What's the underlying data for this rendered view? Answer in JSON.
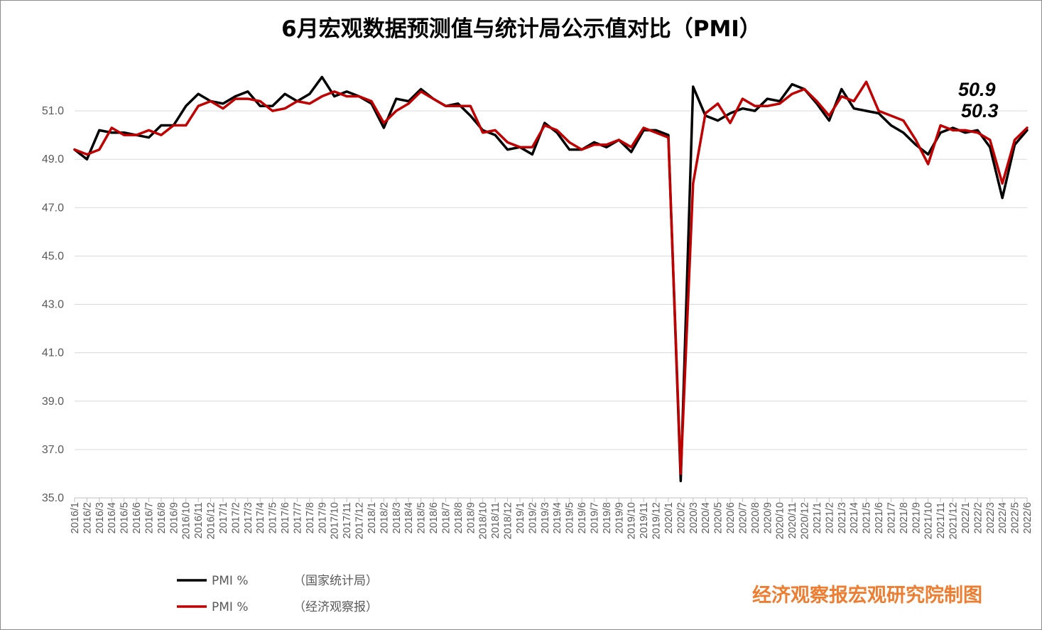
{
  "chart_data": {
    "type": "line",
    "title": "6月宏观数据预测值与统计局公示值对比（PMI）",
    "ylim": [
      35.0,
      53.0
    ],
    "yticks": [
      "35.0",
      "37.0",
      "39.0",
      "41.0",
      "43.0",
      "45.0",
      "47.0",
      "49.0",
      "51.0"
    ],
    "grid": true,
    "legend_position": "bottom-left",
    "x": [
      "2016/1",
      "2016/2",
      "2016/3",
      "2016/4",
      "2016/5",
      "2016/6",
      "2016/7",
      "2016/8",
      "2016/9",
      "2016/10",
      "2016/11",
      "2016/12",
      "2017/1",
      "2017/2",
      "2017/3",
      "2017/4",
      "2017/5",
      "2017/6",
      "2017/7",
      "2017/8",
      "2017/9",
      "2017/10",
      "2017/11",
      "2017/12",
      "2018/1",
      "2018/2",
      "2018/3",
      "2018/4",
      "2018/5",
      "2018/6",
      "2018/7",
      "2018/8",
      "2018/9",
      "2018/10",
      "2018/11",
      "2018/12",
      "2019/1",
      "2019/2",
      "2019/3",
      "2019/4",
      "2019/5",
      "2019/6",
      "2019/7",
      "2019/8",
      "2019/9",
      "2019/10",
      "2019/11",
      "2019/12",
      "2020/1",
      "2020/2",
      "2020/3",
      "2020/4",
      "2020/5",
      "2020/6",
      "2020/7",
      "2020/8",
      "2020/9",
      "2020/10",
      "2020/11",
      "2020/12",
      "2021/1",
      "2021/2",
      "2021/3",
      "2021/4",
      "2021/5",
      "2021/6",
      "2021/7",
      "2021/8",
      "2021/9",
      "2021/10",
      "2021/11",
      "2021/12",
      "2022/1",
      "2022/2",
      "2022/3",
      "2022/4",
      "2022/5",
      "2022/6"
    ],
    "series": [
      {
        "name": "PMI %",
        "source": "（国家统计局）",
        "color": "#000000",
        "values": [
          49.4,
          49.0,
          50.2,
          50.1,
          50.1,
          50.0,
          49.9,
          50.4,
          50.4,
          51.2,
          51.7,
          51.4,
          51.3,
          51.6,
          51.8,
          51.2,
          51.2,
          51.7,
          51.4,
          51.7,
          52.4,
          51.6,
          51.8,
          51.6,
          51.3,
          50.3,
          51.5,
          51.4,
          51.9,
          51.5,
          51.2,
          51.3,
          50.8,
          50.2,
          50.0,
          49.4,
          49.5,
          49.2,
          50.5,
          50.1,
          49.4,
          49.4,
          49.7,
          49.5,
          49.8,
          49.3,
          50.2,
          50.2,
          50.0,
          35.7,
          52.0,
          50.8,
          50.6,
          50.9,
          51.1,
          51.0,
          51.5,
          51.4,
          52.1,
          51.9,
          51.3,
          50.6,
          51.9,
          51.1,
          51.0,
          50.9,
          50.4,
          50.1,
          49.6,
          49.2,
          50.1,
          50.3,
          50.1,
          50.2,
          49.5,
          47.4,
          49.6,
          50.2
        ]
      },
      {
        "name": "PMI %",
        "source": "（经济观察报）",
        "color": "#C00000",
        "values": [
          49.4,
          49.2,
          49.4,
          50.3,
          50.0,
          50.0,
          50.2,
          50.0,
          50.4,
          50.4,
          51.2,
          51.4,
          51.1,
          51.5,
          51.5,
          51.4,
          51.0,
          51.1,
          51.4,
          51.3,
          51.6,
          51.8,
          51.6,
          51.6,
          51.4,
          50.5,
          51.0,
          51.3,
          51.8,
          51.5,
          51.2,
          51.2,
          51.2,
          50.1,
          50.2,
          49.7,
          49.5,
          49.5,
          50.4,
          50.2,
          49.7,
          49.4,
          49.6,
          49.6,
          49.8,
          49.5,
          50.3,
          50.1,
          49.9,
          36.0,
          48.0,
          50.9,
          51.3,
          50.5,
          51.5,
          51.2,
          51.2,
          51.3,
          51.7,
          51.9,
          51.4,
          50.8,
          51.6,
          51.4,
          52.2,
          51.0,
          50.8,
          50.6,
          49.8,
          48.8,
          50.4,
          50.2,
          50.2,
          50.1,
          49.8,
          48.0,
          49.8,
          50.3
        ]
      }
    ],
    "annotations": [
      "50.9",
      "50.3"
    ],
    "credit": "经济观察报宏观研究院制图"
  }
}
